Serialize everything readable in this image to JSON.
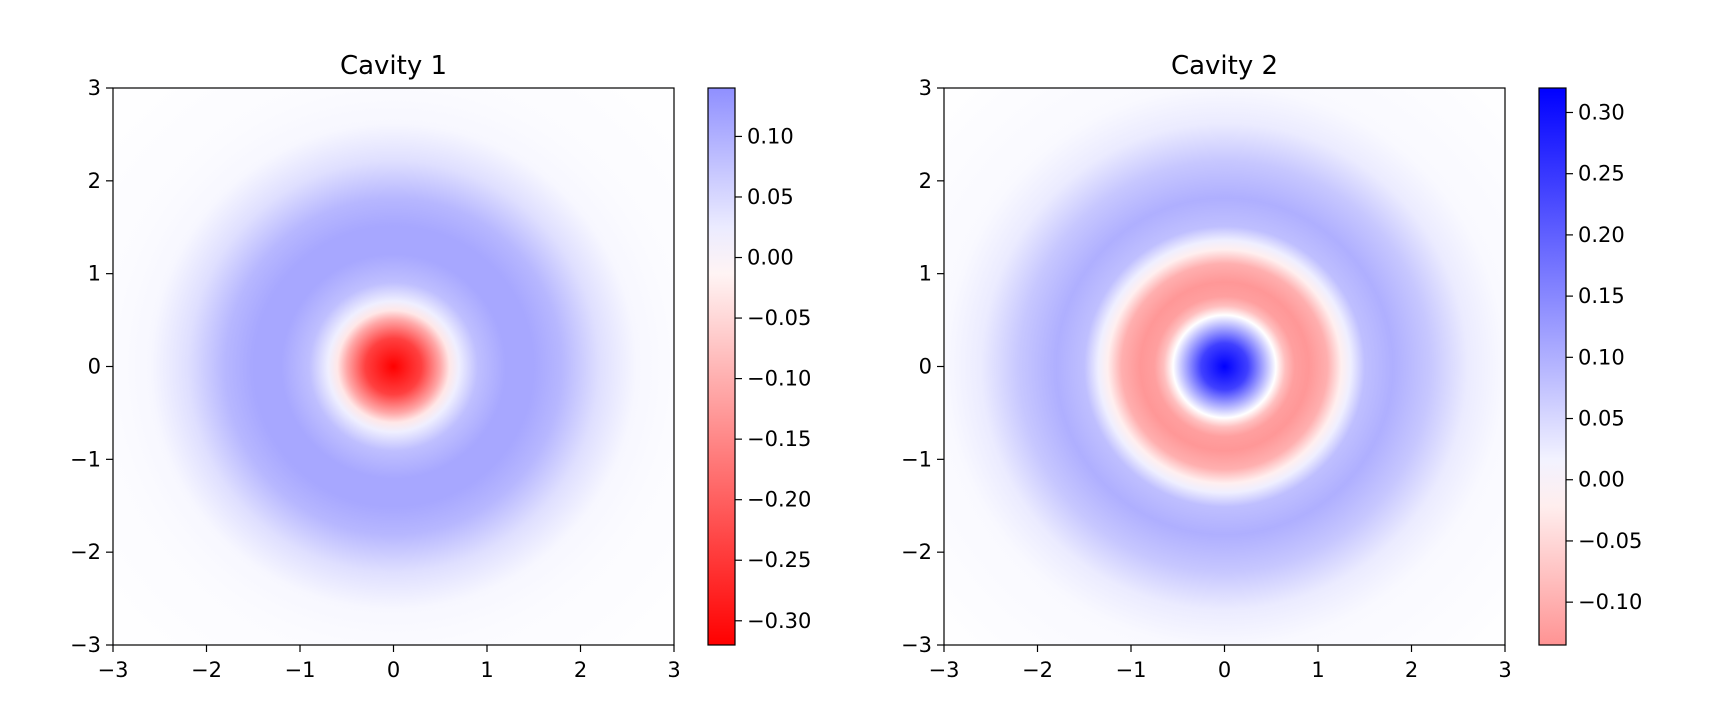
{
  "chart_data": [
    {
      "type": "heatmap",
      "title": "Cavity 1",
      "xlabel": "",
      "ylabel": "",
      "xlim": [
        -3,
        3
      ],
      "ylim": [
        -3,
        3
      ],
      "xticks": [
        -3,
        -2,
        -1,
        0,
        1,
        2,
        3
      ],
      "yticks": [
        -3,
        -2,
        -1,
        0,
        1,
        2,
        3
      ],
      "xtick_labels": [
        "−3",
        "−2",
        "−1",
        "0",
        "1",
        "2",
        "3"
      ],
      "ytick_labels": [
        "−3",
        "−2",
        "−1",
        "0",
        "1",
        "2",
        "3"
      ],
      "grid": false,
      "colormap": "bwr_r",
      "colormap_colors": {
        "negative": "#ff0000",
        "zero": "#ffffff",
        "positive": "#0000ff"
      },
      "colormap_norm_range": [
        -0.32,
        0.32
      ],
      "clim": [
        -0.32,
        0.14
      ],
      "colorbar_ticks": [
        0.1,
        0.05,
        0.0,
        -0.05,
        -0.1,
        -0.15,
        -0.2,
        -0.25,
        -0.3
      ],
      "colorbar_tick_labels": [
        "0.10",
        "0.05",
        "0.00",
        "−0.05",
        "−0.10",
        "−0.15",
        "−0.20",
        "−0.25",
        "−0.30"
      ],
      "radial_profile": {
        "r": [
          0,
          0.3,
          0.5,
          0.6,
          0.7,
          0.9,
          1.2,
          1.5,
          1.8,
          2.2,
          2.6,
          3.0,
          4.3
        ],
        "value": [
          -0.32,
          -0.24,
          -0.11,
          -0.03,
          0.02,
          0.08,
          0.11,
          0.11,
          0.09,
          0.04,
          0.01,
          0.005,
          0.0
        ]
      }
    },
    {
      "type": "heatmap",
      "title": "Cavity 2",
      "xlabel": "",
      "ylabel": "",
      "xlim": [
        -3,
        3
      ],
      "ylim": [
        -3,
        3
      ],
      "xticks": [
        -3,
        -2,
        -1,
        0,
        1,
        2,
        3
      ],
      "yticks": [
        -3,
        -2,
        -1,
        0,
        1,
        2,
        3
      ],
      "xtick_labels": [
        "−3",
        "−2",
        "−1",
        "0",
        "1",
        "2",
        "3"
      ],
      "ytick_labels": [
        "−3",
        "−2",
        "−1",
        "0",
        "1",
        "2",
        "3"
      ],
      "grid": false,
      "colormap": "bwr_r",
      "colormap_colors": {
        "negative": "#ff0000",
        "zero": "#ffffff",
        "positive": "#0000ff"
      },
      "colormap_norm_range": [
        -0.32,
        0.32
      ],
      "clim": [
        -0.135,
        0.32
      ],
      "colorbar_ticks": [
        0.3,
        0.25,
        0.2,
        0.15,
        0.1,
        0.05,
        0.0,
        -0.05,
        -0.1
      ],
      "colorbar_tick_labels": [
        "0.30",
        "0.25",
        "0.20",
        "0.15",
        "0.10",
        "0.05",
        "0.00",
        "−0.05",
        "−0.10"
      ],
      "radial_profile": {
        "r": [
          0,
          0.25,
          0.45,
          0.55,
          0.65,
          0.75,
          0.9,
          1.1,
          1.25,
          1.35,
          1.5,
          1.8,
          2.2,
          2.6,
          3.0,
          4.3
        ],
        "value": [
          0.32,
          0.24,
          0.08,
          0.0,
          -0.08,
          -0.12,
          -0.13,
          -0.1,
          -0.02,
          0.02,
          0.08,
          0.1,
          0.07,
          0.025,
          0.008,
          0.0
        ]
      }
    }
  ]
}
